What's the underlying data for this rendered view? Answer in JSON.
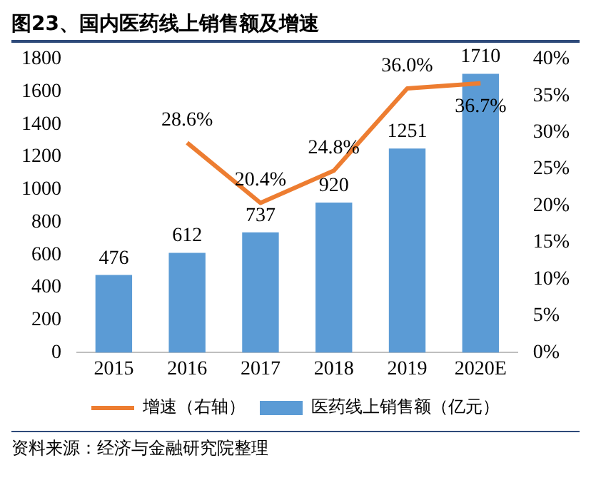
{
  "chart_data": {
    "type": "bar",
    "title": "图23、国内医药线上销售额及增速",
    "categories": [
      "2015",
      "2016",
      "2017",
      "2018",
      "2019",
      "2020E"
    ],
    "series": [
      {
        "name": "医药线上销售额（亿元）",
        "color": "#5b9bd5",
        "values": [
          476,
          612,
          737,
          920,
          1251,
          1710
        ],
        "value_labels": [
          "476",
          "612",
          "737",
          "920",
          "1251",
          "1710"
        ]
      },
      {
        "name": "增速（右轴）",
        "type": "line",
        "axis": "y2",
        "color": "#ed7d31",
        "marker": "none",
        "values": [
          null,
          28.6,
          20.4,
          24.8,
          36.0,
          36.7
        ],
        "value_labels": [
          null,
          "28.6%",
          "20.4%",
          "24.8%",
          "36.0%",
          "36.7%"
        ]
      }
    ],
    "ylim": [
      0,
      1800
    ],
    "yticks": [
      0,
      200,
      400,
      600,
      800,
      1000,
      1200,
      1400,
      1600,
      1800
    ],
    "y2lim": [
      0,
      40
    ],
    "y2ticks": [
      {
        "value": 0,
        "label": "0%"
      },
      {
        "value": 5,
        "label": "5%"
      },
      {
        "value": 10,
        "label": "10%"
      },
      {
        "value": 15,
        "label": "15%"
      },
      {
        "value": 20,
        "label": "20%"
      },
      {
        "value": 25,
        "label": "25%"
      },
      {
        "value": 30,
        "label": "30%"
      },
      {
        "value": 35,
        "label": "35%"
      },
      {
        "value": 40,
        "label": "40%"
      }
    ],
    "grid": false,
    "legend": "bottom",
    "annotations": [
      "资料来源：经济与金融研究院整理"
    ]
  }
}
